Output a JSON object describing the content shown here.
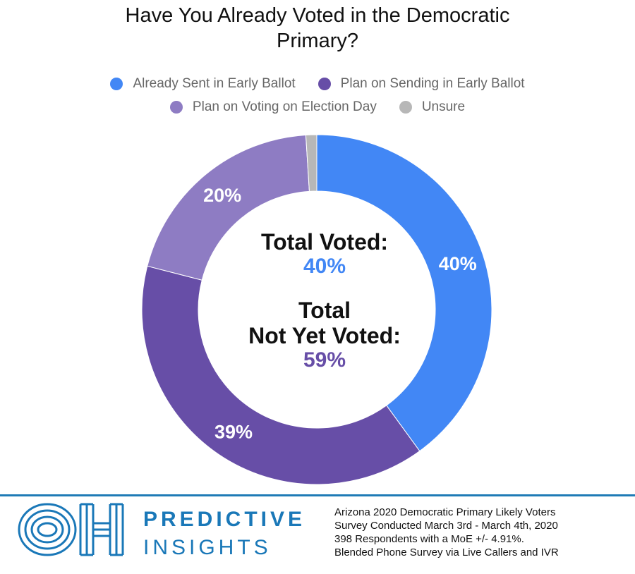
{
  "chart_data": {
    "type": "pie",
    "title": "Have You Already Voted in the Democratic Primary?",
    "title_lines": [
      "Have You Already Voted in the Democratic",
      "Primary?"
    ],
    "categories": [
      "Already Sent in Early Ballot",
      "Plan on Sending in Early Ballot",
      "Plan on Voting on Election Day",
      "Unsure"
    ],
    "values": [
      40,
      39,
      20,
      1
    ],
    "data_labels": [
      "40%",
      "39%",
      "20%",
      ""
    ],
    "colors": [
      "#4287f5",
      "#674ea7",
      "#8e7cc3",
      "#b7b7b7"
    ],
    "donut": true,
    "legend_position": "top",
    "center": {
      "voted_label": "Total Voted:",
      "voted_value": "40%",
      "not_voted_label_line1": "Total",
      "not_voted_label_line2": "Not Yet Voted:",
      "not_voted_value": "59%"
    }
  },
  "footer": {
    "logo_icon": "oh-logo-icon",
    "brand_line1": "PREDICTIVE",
    "brand_line2": "INSIGHTS",
    "accent_color": "#1f7bb6",
    "notes": [
      "Arizona 2020 Democratic Primary Likely Voters",
      "Survey Conducted March 3rd - March 4th, 2020",
      "398 Respondents with a MoE +/- 4.91%.",
      "Blended Phone Survey via Live Callers and IVR"
    ]
  }
}
